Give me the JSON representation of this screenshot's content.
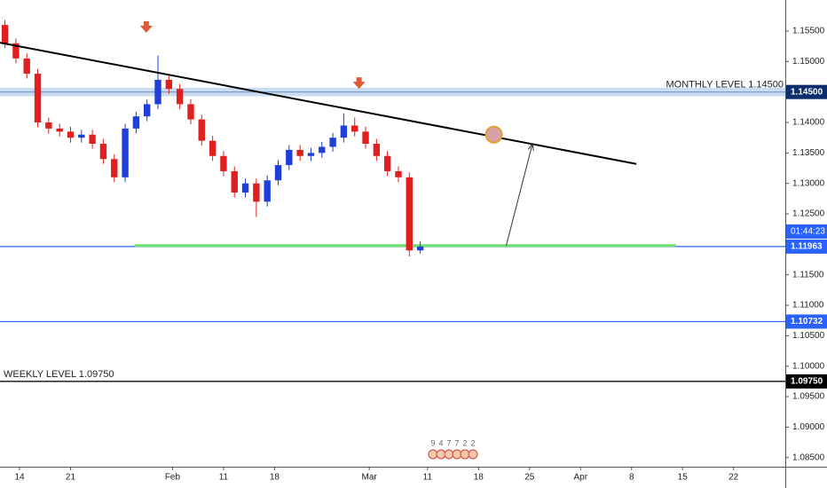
{
  "chart_data": {
    "type": "candlestick",
    "xlim": [
      11.32,
      119.1
    ],
    "ylim": [
      1.0835,
      1.1601
    ],
    "xticks": [
      14,
      21,
      {
        "value": 35,
        "label": "Feb"
      },
      {
        "value": 42,
        "label": "11"
      },
      {
        "value": 49,
        "label": "18"
      },
      {
        "value": 62,
        "label": "Mar"
      },
      {
        "value": 70,
        "label": "11"
      },
      {
        "value": 77,
        "label": "18"
      },
      {
        "value": 84,
        "label": "25"
      },
      {
        "value": 91,
        "label": "Apr"
      },
      {
        "value": 98,
        "label": "8"
      },
      {
        "value": 105,
        "label": "15"
      },
      {
        "value": 112,
        "label": "22"
      }
    ],
    "yticks": [
      {
        "value": 1.155,
        "label": "1.15500"
      },
      {
        "value": 1.15,
        "label": "1.15000"
      },
      {
        "value": 1.14,
        "label": "1.14000"
      },
      {
        "value": 1.135,
        "label": "1.13500"
      },
      {
        "value": 1.13,
        "label": "1.13000"
      },
      {
        "value": 1.125,
        "label": "1.12500"
      },
      {
        "value": 1.115,
        "label": "1.11500"
      },
      {
        "value": 1.11,
        "label": "1.11000"
      },
      {
        "value": 1.105,
        "label": "1.10500"
      },
      {
        "value": 1.1,
        "label": "1.10000"
      },
      {
        "value": 1.095,
        "label": "1.09500"
      },
      {
        "value": 1.09,
        "label": "1.09000"
      },
      {
        "value": 1.085,
        "label": "1.08500"
      }
    ],
    "up_color": "#1f3fd8",
    "down_color": "#e0201f",
    "x": [
      12,
      13.5,
      15,
      16.5,
      18,
      19.5,
      21,
      22.5,
      24,
      25.5,
      27,
      28.5,
      30,
      31.5,
      33,
      34.5,
      36,
      37.5,
      39,
      40.5,
      42,
      43.5,
      45,
      46.5,
      48,
      49.5,
      51,
      52.5,
      54,
      55.5,
      57,
      58.5,
      60,
      61.5,
      63,
      64.5,
      66,
      67.5,
      69
    ],
    "open": [
      1.156,
      1.153,
      1.1505,
      1.148,
      1.14,
      1.139,
      1.1385,
      1.1375,
      1.138,
      1.1365,
      1.134,
      1.131,
      1.139,
      1.141,
      1.143,
      1.147,
      1.1455,
      1.143,
      1.1405,
      1.137,
      1.1345,
      1.132,
      1.1285,
      1.13,
      1.127,
      1.1305,
      1.133,
      1.1355,
      1.1345,
      1.135,
      1.136,
      1.1375,
      1.1395,
      1.1385,
      1.1365,
      1.1345,
      1.132,
      1.131,
      1.119
    ],
    "high": [
      1.1568,
      1.1538,
      1.1513,
      1.1488,
      1.1408,
      1.1398,
      1.1393,
      1.1388,
      1.1388,
      1.1373,
      1.1348,
      1.1398,
      1.1418,
      1.1438,
      1.151,
      1.1478,
      1.1463,
      1.1438,
      1.1413,
      1.1378,
      1.1353,
      1.1328,
      1.1308,
      1.1308,
      1.1313,
      1.1338,
      1.1363,
      1.1363,
      1.1358,
      1.1368,
      1.1383,
      1.1415,
      1.1408,
      1.1393,
      1.1373,
      1.1353,
      1.1328,
      1.1318,
      1.1205
    ],
    "low": [
      1.1522,
      1.1497,
      1.1472,
      1.1392,
      1.1382,
      1.1377,
      1.1367,
      1.1367,
      1.1357,
      1.1332,
      1.1302,
      1.1302,
      1.1382,
      1.1402,
      1.1422,
      1.1447,
      1.1422,
      1.1397,
      1.1362,
      1.1337,
      1.1312,
      1.1277,
      1.1277,
      1.1245,
      1.1262,
      1.1297,
      1.1322,
      1.1337,
      1.1337,
      1.1342,
      1.1352,
      1.1367,
      1.1377,
      1.1357,
      1.1337,
      1.1312,
      1.1302,
      1.118,
      1.1185
    ],
    "close": [
      1.153,
      1.1505,
      1.148,
      1.14,
      1.139,
      1.1385,
      1.1375,
      1.138,
      1.1365,
      1.134,
      1.131,
      1.139,
      1.141,
      1.143,
      1.147,
      1.1455,
      1.143,
      1.1405,
      1.137,
      1.1345,
      1.132,
      1.1285,
      1.13,
      1.127,
      1.1305,
      1.133,
      1.1355,
      1.1345,
      1.135,
      1.136,
      1.1375,
      1.1395,
      1.1385,
      1.1365,
      1.1345,
      1.132,
      1.131,
      1.119,
      1.11963
    ],
    "monthly_zone": [
      1.1443,
      1.1457
    ],
    "monthly_label": "MONTHLY LEVEL 1.14500",
    "weekly_label": "WEEKLY LEVEL 1.09750",
    "trendline": {
      "x": [
        11.32,
        98.65
      ],
      "y": [
        1.1531,
        1.1332
      ]
    },
    "support": {
      "x": [
        29.8,
        104.1
      ],
      "y": 1.1198,
      "color": "#6ee06e"
    },
    "projection": {
      "x": [
        80.8,
        84.4
      ],
      "y": [
        1.1198,
        1.1365
      ]
    },
    "target": {
      "x": 79.1,
      "y": 1.138
    },
    "markers": {
      "x": [
        31.4,
        60.6
      ],
      "y": [
        1.1553,
        1.1461
      ]
    },
    "price_lines": [
      {
        "value": 1.145,
        "label": "1.14500",
        "color": "#0b2d6b"
      },
      {
        "value": 1.11963,
        "label": "1.11963",
        "color": "#2962ff"
      },
      {
        "value": 1.10732,
        "label": "1.10732",
        "color": "#2962ff"
      },
      {
        "value": 1.0975,
        "label": "1.09750",
        "color": "#000000"
      }
    ],
    "countdown": "01:44:23",
    "events": [
      "9",
      "4",
      "7",
      "7",
      "2",
      "2"
    ]
  }
}
